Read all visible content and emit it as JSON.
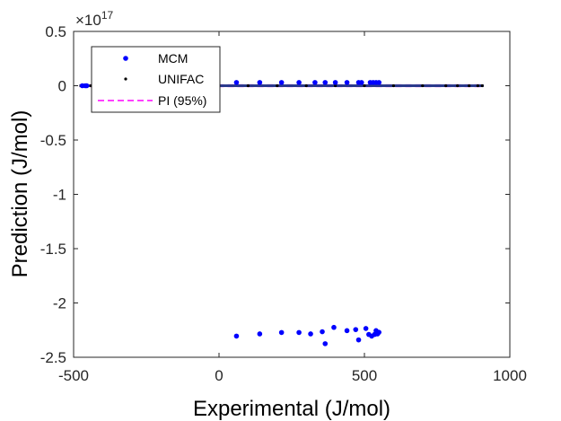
{
  "chart_data": {
    "type": "scatter",
    "xlabel": "Experimental (J/mol)",
    "ylabel": "Prediction (J/mol)",
    "exponent_base": "×10",
    "exponent_power": "17",
    "xlim": [
      -500,
      1000
    ],
    "ylim": [
      -2.5,
      0.5
    ],
    "xticks": [
      -500,
      0,
      500,
      1000
    ],
    "xtick_labels": [
      "-500",
      "0",
      "500",
      "1000"
    ],
    "yticks": [
      0.5,
      0,
      -0.5,
      -1,
      -1.5,
      -2,
      -2.5
    ],
    "ytick_labels": [
      "0.5",
      "0",
      "-0.5",
      "-1",
      "-1.5",
      "-2",
      "-2.5"
    ],
    "legend_position": "top-left",
    "grid": false,
    "series": [
      {
        "name": "MCM",
        "color": "#0000ff",
        "marker": "dot",
        "points": [
          [
            -470,
            0
          ],
          [
            -460,
            0
          ],
          [
            -455,
            0
          ],
          [
            60,
            0.03
          ],
          [
            140,
            0.03
          ],
          [
            215,
            0.03
          ],
          [
            275,
            0.03
          ],
          [
            330,
            0.03
          ],
          [
            365,
            0.03
          ],
          [
            400,
            0.03
          ],
          [
            440,
            0.03
          ],
          [
            480,
            0.03
          ],
          [
            490,
            0.03
          ],
          [
            520,
            0.03
          ],
          [
            530,
            0.03
          ],
          [
            540,
            0.03
          ],
          [
            550,
            0.03
          ],
          [
            60,
            -2.305
          ],
          [
            140,
            -2.285
          ],
          [
            215,
            -2.272
          ],
          [
            275,
            -2.272
          ],
          [
            315,
            -2.285
          ],
          [
            355,
            -2.265
          ],
          [
            365,
            -2.375
          ],
          [
            395,
            -2.225
          ],
          [
            440,
            -2.255
          ],
          [
            470,
            -2.245
          ],
          [
            480,
            -2.34
          ],
          [
            505,
            -2.235
          ],
          [
            515,
            -2.29
          ],
          [
            525,
            -2.305
          ],
          [
            535,
            -2.29
          ],
          [
            540,
            -2.255
          ],
          [
            545,
            -2.285
          ],
          [
            550,
            -2.27
          ]
        ]
      },
      {
        "name": "UNIFAC",
        "color": "#000000",
        "marker": "point",
        "points": [
          [
            -475,
            0
          ],
          [
            -440,
            0
          ],
          [
            -380,
            0
          ],
          [
            -300,
            0
          ],
          [
            -200,
            0
          ],
          [
            -100,
            0
          ],
          [
            0,
            0
          ],
          [
            100,
            0
          ],
          [
            200,
            0
          ],
          [
            300,
            0
          ],
          [
            400,
            0
          ],
          [
            500,
            0
          ],
          [
            600,
            0
          ],
          [
            700,
            0
          ],
          [
            780,
            0
          ],
          [
            820,
            0
          ],
          [
            860,
            0
          ],
          [
            890,
            0
          ],
          [
            905,
            0
          ]
        ]
      },
      {
        "name": "PI (95%)",
        "color": "#ff00ff",
        "line": "dashed",
        "x": [
          -480,
          910
        ],
        "upper": [
          0.008,
          0.008
        ],
        "lower": [
          -0.008,
          -0.008
        ]
      }
    ],
    "fit_line": {
      "color": "#2b3a8c",
      "x": [
        -480,
        910
      ],
      "y": [
        0,
        0
      ]
    }
  }
}
